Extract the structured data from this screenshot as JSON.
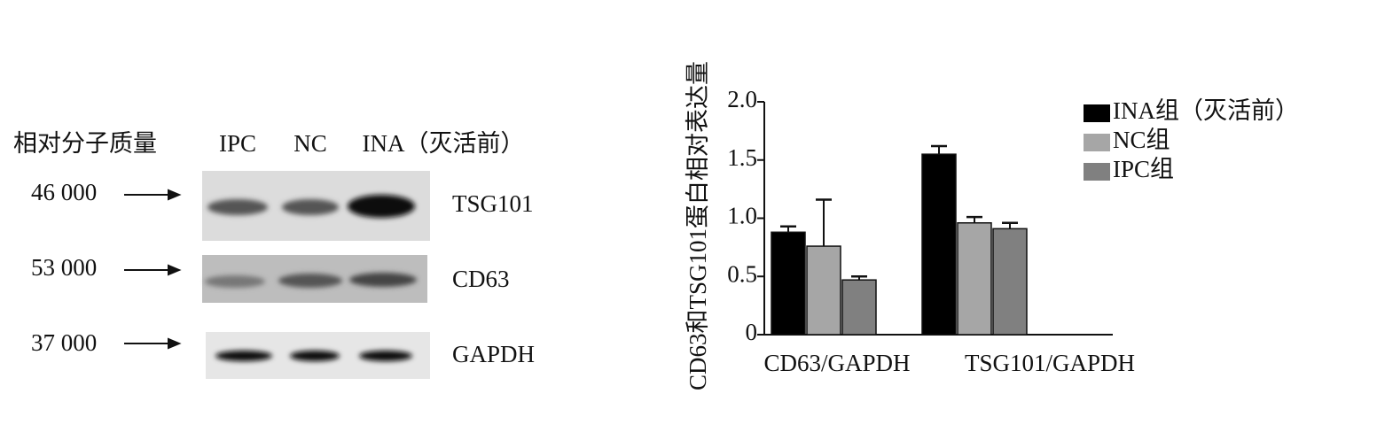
{
  "blot": {
    "header": [
      "相对分子质量",
      "IPC",
      "NC",
      "INA（灭活前）"
    ],
    "rows": [
      {
        "mass": "46 000",
        "protein": "TSG101"
      },
      {
        "mass": "53 000",
        "protein": "CD63"
      },
      {
        "mass": "37 000",
        "protein": "GAPDH"
      }
    ]
  },
  "chart_data": {
    "type": "bar",
    "y_label": "CD63和TSG101蛋白相对表达量",
    "categories": [
      "CD63/GAPDH",
      "TSG101/GAPDH"
    ],
    "series": [
      {
        "name": "INA组（灭活前）",
        "color": "#000000",
        "values": [
          0.88,
          1.55
        ],
        "errors": [
          0.05,
          0.07
        ]
      },
      {
        "name": "NC组",
        "color": "#a6a6a6",
        "values": [
          0.76,
          0.96
        ],
        "errors": [
          0.4,
          0.05
        ]
      },
      {
        "name": "IPC组",
        "color": "#808080",
        "values": [
          0.47,
          0.91
        ],
        "errors": [
          0.03,
          0.05
        ]
      }
    ],
    "ylim": [
      0,
      2
    ],
    "yticks": [
      0,
      0.5,
      {
        "value": 1,
        "label": "1.0"
      },
      1.5,
      {
        "value": 2,
        "label": "2.0"
      }
    ],
    "legend": "upper right"
  }
}
